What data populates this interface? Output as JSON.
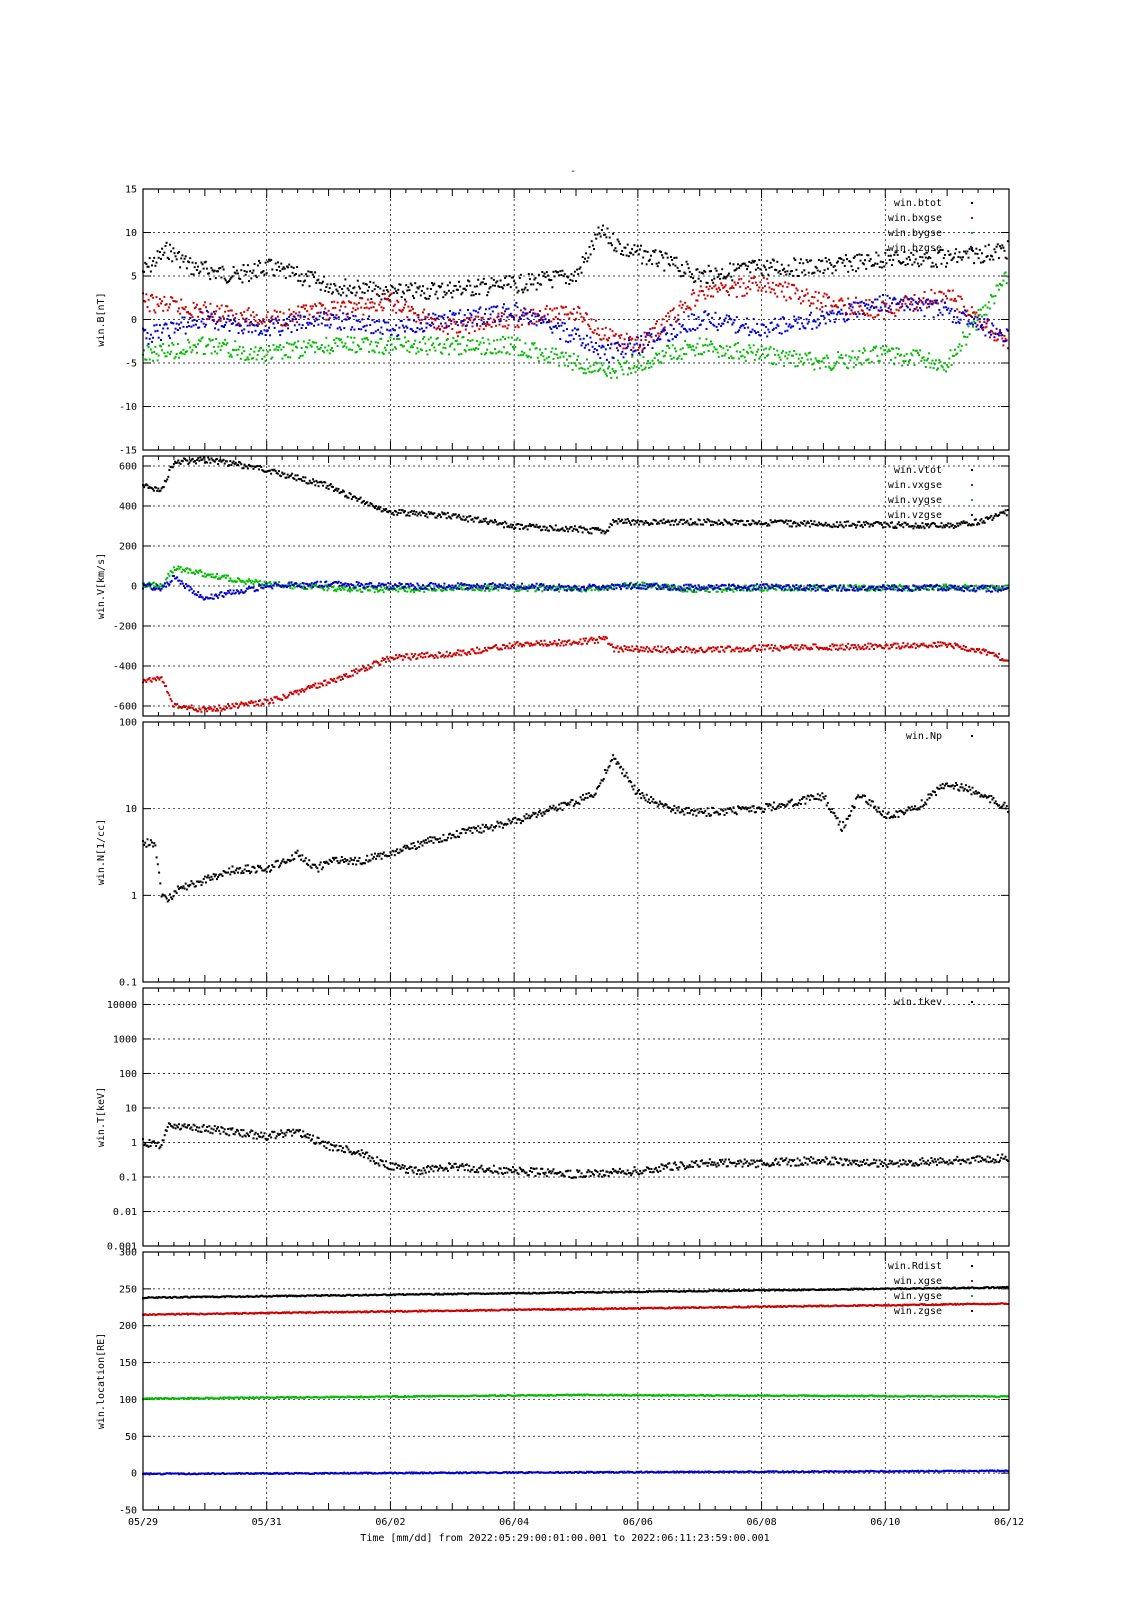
{
  "figure": {
    "title": "-",
    "xlabel": "Time [mm/dd]  from 2022:05:29:00:01:00.001  to  2022:06:11:23:59:00.001"
  },
  "colors": {
    "black": "#000000",
    "red": "#cc0000",
    "green": "#00bb00",
    "blue": "#0000cc"
  },
  "chart_data": [
    {
      "type": "scatter",
      "ylabel": "win.B[nT]",
      "x_tick_labels": [
        "05/29",
        "05/31",
        "06/02",
        "06/04",
        "06/06",
        "06/08",
        "06/10",
        "06/12"
      ],
      "xlim": [
        0,
        14
      ],
      "ylim": [
        -15,
        15
      ],
      "yscale": "linear",
      "y_tick_labels": [
        "15",
        "10",
        "5",
        "0",
        "-5",
        "-10",
        "-15"
      ],
      "y_ticks": [
        15,
        10,
        5,
        0,
        -5,
        -10,
        -15
      ],
      "grid": true,
      "legend_position": "top-right",
      "series": [
        {
          "name": "win.btot",
          "color": "#000000",
          "x": [
            0,
            0.4,
            0.8,
            1.5,
            2.0,
            3.0,
            4.0,
            5.0,
            6.0,
            7.0,
            7.4,
            7.8,
            8.5,
            9.0,
            10.0,
            11.0,
            12.0,
            13.0,
            14.0
          ],
          "y": [
            5.5,
            8,
            6,
            5,
            6,
            4,
            3,
            3.5,
            4,
            5,
            10,
            8,
            6.5,
            5,
            6,
            6,
            7,
            7,
            8
          ]
        },
        {
          "name": "win.bxgse",
          "color": "#cc0000",
          "x": [
            0,
            1,
            2,
            3,
            4,
            5,
            6,
            7,
            7.5,
            8,
            9,
            10,
            11,
            12,
            13,
            14
          ],
          "y": [
            2,
            1,
            0,
            1,
            2,
            -1,
            0,
            1,
            -2,
            -3,
            3,
            4,
            2,
            1,
            3,
            -3
          ]
        },
        {
          "name": "win.bygse",
          "color": "#00bb00",
          "x": [
            0,
            1,
            2,
            3,
            4,
            5,
            6,
            7,
            7.5,
            8,
            9,
            10,
            11,
            12,
            13,
            14
          ],
          "y": [
            -4,
            -3,
            -4,
            -3,
            -3,
            -3,
            -3,
            -5,
            -6,
            -5,
            -3,
            -4,
            -5,
            -4,
            -5,
            5
          ]
        },
        {
          "name": "win.bzgse",
          "color": "#0000cc",
          "x": [
            0,
            1,
            2,
            3,
            4,
            5,
            6,
            7,
            7.5,
            8,
            9,
            10,
            11,
            12,
            13,
            14
          ],
          "y": [
            -2,
            0,
            -1,
            0,
            -1,
            0,
            1,
            -2,
            -4,
            -3,
            0,
            -1,
            0,
            2,
            1,
            -2
          ]
        }
      ]
    },
    {
      "type": "scatter",
      "ylabel": "win.V[km/s]",
      "x_tick_labels": [
        "05/29",
        "05/31",
        "06/02",
        "06/04",
        "06/06",
        "06/08",
        "06/10",
        "06/12"
      ],
      "xlim": [
        0,
        14
      ],
      "ylim": [
        -650,
        650
      ],
      "yscale": "linear",
      "y_tick_labels": [
        "600",
        "400",
        "200",
        "0",
        "-200",
        "-400",
        "-600"
      ],
      "y_ticks": [
        600,
        400,
        200,
        0,
        -200,
        -400,
        -600
      ],
      "grid": true,
      "legend_position": "top-right",
      "series": [
        {
          "name": "win.vtot",
          "color": "#000000",
          "x": [
            0,
            0.3,
            0.5,
            1.0,
            1.5,
            2.0,
            2.5,
            3.0,
            3.5,
            4.0,
            5.0,
            6.0,
            7.0,
            7.5,
            7.6,
            8.0,
            9.0,
            10.0,
            11.0,
            12.0,
            13.0,
            13.5,
            14.0
          ],
          "y": [
            500,
            480,
            620,
            630,
            610,
            580,
            540,
            500,
            430,
            370,
            350,
            300,
            285,
            270,
            320,
            320,
            320,
            315,
            310,
            305,
            300,
            320,
            370
          ]
        },
        {
          "name": "win.vxgse",
          "color": "#cc0000",
          "x": [
            0,
            0.3,
            0.5,
            1.0,
            1.5,
            2.0,
            2.5,
            3.0,
            3.5,
            4.0,
            5.0,
            6.0,
            7.0,
            7.5,
            7.6,
            8.0,
            9.0,
            10.0,
            11.0,
            12.0,
            13.0,
            13.5,
            14.0
          ],
          "y": [
            -470,
            -460,
            -600,
            -620,
            -600,
            -580,
            -530,
            -480,
            -420,
            -360,
            -340,
            -295,
            -280,
            -265,
            -315,
            -315,
            -320,
            -310,
            -305,
            -300,
            -295,
            -320,
            -370
          ]
        },
        {
          "name": "win.vygse",
          "color": "#00bb00",
          "x": [
            0,
            0.3,
            0.5,
            1.0,
            1.5,
            2.0,
            3.0,
            4.0,
            5.0,
            6.0,
            7.0,
            8.0,
            9.0,
            10.0,
            11.0,
            12.0,
            13.0,
            14.0
          ],
          "y": [
            10,
            0,
            90,
            60,
            30,
            10,
            -10,
            -20,
            -10,
            -10,
            -15,
            5,
            -20,
            -10,
            -10,
            -10,
            -5,
            -10
          ]
        },
        {
          "name": "win.vzgse",
          "color": "#0000cc",
          "x": [
            0,
            0.3,
            0.5,
            1.0,
            1.5,
            2.0,
            3.0,
            4.0,
            5.0,
            6.0,
            7.0,
            8.0,
            9.0,
            10.0,
            11.0,
            12.0,
            13.0,
            14.0
          ],
          "y": [
            0,
            -10,
            40,
            -60,
            -30,
            0,
            10,
            0,
            0,
            0,
            -10,
            0,
            -10,
            -5,
            -10,
            -10,
            -10,
            -15
          ]
        }
      ]
    },
    {
      "type": "scatter",
      "ylabel": "win.N[1/cc]",
      "x_tick_labels": [
        "05/29",
        "05/31",
        "06/02",
        "06/04",
        "06/06",
        "06/08",
        "06/10",
        "06/12"
      ],
      "xlim": [
        0,
        14
      ],
      "ylim": [
        0.1,
        100
      ],
      "yscale": "log",
      "y_tick_labels": [
        "100",
        "10",
        "1",
        "0.1"
      ],
      "y_ticks": [
        100,
        10,
        1,
        0.1
      ],
      "grid": true,
      "legend_position": "top-right",
      "series": [
        {
          "name": "win.Np",
          "color": "#000000",
          "x": [
            0,
            0.2,
            0.3,
            0.4,
            0.6,
            1.0,
            1.5,
            2.0,
            2.5,
            2.8,
            3.0,
            3.5,
            4.0,
            4.5,
            5.0,
            6.0,
            7.0,
            7.3,
            7.6,
            8.0,
            8.5,
            9.0,
            10.0,
            11.0,
            11.3,
            11.6,
            12.0,
            12.5,
            13.0,
            13.5,
            14.0
          ],
          "y": [
            4,
            4,
            1,
            0.9,
            1.2,
            1.5,
            2,
            2,
            3,
            2,
            2.5,
            2.5,
            3,
            4,
            5,
            7,
            12,
            15,
            40,
            15,
            10,
            9,
            10,
            14,
            6,
            15,
            8,
            10,
            20,
            15,
            10
          ]
        }
      ]
    },
    {
      "type": "scatter",
      "ylabel": "win.T[keV]",
      "x_tick_labels": [
        "05/29",
        "05/31",
        "06/02",
        "06/04",
        "06/06",
        "06/08",
        "06/10",
        "06/12"
      ],
      "xlim": [
        0,
        14
      ],
      "ylim": [
        0.001,
        30000
      ],
      "yscale": "log",
      "y_tick_labels": [
        "10000",
        "1000",
        "100",
        "10",
        "1",
        "0.1",
        "0.01",
        "0.001"
      ],
      "y_ticks": [
        10000,
        1000,
        100,
        10,
        1,
        0.1,
        0.01,
        0.001
      ],
      "grid": true,
      "legend_position": "top-right",
      "series": [
        {
          "name": "win.tkev",
          "color": "#000000",
          "x": [
            0,
            0.3,
            0.4,
            1.0,
            1.5,
            2.0,
            2.5,
            3.0,
            3.5,
            4.0,
            4.5,
            5.0,
            6.0,
            7.0,
            8.0,
            9.0,
            10.0,
            11.0,
            12.0,
            13.0,
            14.0
          ],
          "y": [
            1,
            0.8,
            3,
            2.5,
            2,
            1.5,
            2,
            0.8,
            0.5,
            0.2,
            0.15,
            0.2,
            0.15,
            0.12,
            0.15,
            0.25,
            0.25,
            0.3,
            0.25,
            0.3,
            0.35
          ]
        }
      ]
    },
    {
      "type": "scatter",
      "ylabel": "win.location[RE]",
      "x_tick_labels": [
        "05/29",
        "05/31",
        "06/02",
        "06/04",
        "06/06",
        "06/08",
        "06/10",
        "06/12"
      ],
      "xlim": [
        0,
        14
      ],
      "ylim": [
        -50,
        300
      ],
      "yscale": "linear",
      "y_tick_labels": [
        "300",
        "250",
        "200",
        "150",
        "100",
        "50",
        "0",
        "-50"
      ],
      "y_ticks": [
        300,
        250,
        200,
        150,
        100,
        50,
        0,
        -50
      ],
      "grid": true,
      "legend_position": "top-right",
      "series": [
        {
          "name": "win.Rdist",
          "color": "#000000",
          "x": [
            0,
            14
          ],
          "y": [
            238,
            252
          ]
        },
        {
          "name": "win.xgse",
          "color": "#cc0000",
          "x": [
            0,
            14
          ],
          "y": [
            215,
            230
          ]
        },
        {
          "name": "win.ygse",
          "color": "#00bb00",
          "x": [
            0,
            7,
            14
          ],
          "y": [
            101,
            106,
            104
          ]
        },
        {
          "name": "win.zgse",
          "color": "#0000cc",
          "x": [
            0,
            14
          ],
          "y": [
            -1,
            3
          ]
        }
      ]
    }
  ]
}
